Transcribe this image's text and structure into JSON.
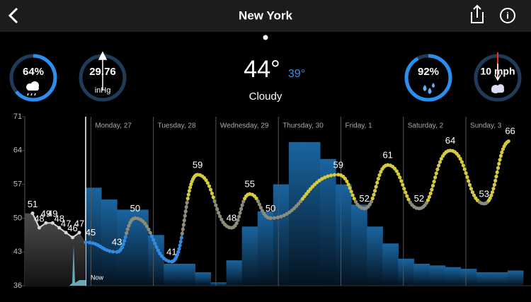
{
  "header": {
    "title": "New York"
  },
  "current": {
    "temperature": "44°",
    "feels_like": "39°",
    "condition": "Cloudy"
  },
  "gauges": {
    "precipitation": {
      "value": 64,
      "label": "64%"
    },
    "pressure": {
      "label": "29.76",
      "unit": "inHg"
    },
    "humidity": {
      "value": 92,
      "label": "92%"
    },
    "wind": {
      "label": "10 mph"
    }
  },
  "chart_data": {
    "type": "line",
    "ylim": [
      36,
      71
    ],
    "yticks": [
      71,
      64,
      57,
      50,
      43,
      36
    ],
    "xlim": [
      -2,
      169
    ],
    "now_label": "Now",
    "days": {
      "x": [
        0,
        24,
        48,
        72,
        96,
        120,
        144
      ],
      "labels": [
        "Monday, 27",
        "Tuesday, 28",
        "Wednesday, 29",
        "Thursday, 30",
        "Friday, 1",
        "Saturday, 2",
        "Sunday, 3"
      ]
    },
    "forecast": {
      "x": [
        -2,
        10,
        17,
        31,
        41,
        54,
        61,
        69,
        95,
        105,
        114,
        126,
        138,
        151,
        161
      ],
      "values": [
        45,
        43,
        50,
        41,
        59,
        48,
        55,
        50,
        59,
        52,
        61,
        52,
        64,
        53,
        66
      ]
    },
    "past": {
      "values": [
        51,
        48,
        49,
        49,
        48,
        47,
        46,
        47
      ]
    },
    "cloud": {
      "bins": [
        -2,
        4,
        10,
        16,
        22,
        28,
        34,
        40,
        46,
        52,
        58,
        64,
        70,
        76,
        82,
        88,
        94,
        100,
        106,
        112,
        118,
        124,
        130,
        136,
        142,
        148,
        154,
        160,
        166
      ],
      "values": [
        58,
        51,
        45,
        45,
        30,
        13,
        13,
        8,
        2,
        15,
        35,
        44,
        60,
        85,
        85,
        75,
        60,
        48,
        35,
        25,
        16,
        13,
        12,
        11,
        10,
        8,
        8,
        9
      ]
    },
    "colors": {
      "cold": "#2e8be6",
      "mild": "#8c8c7c",
      "warm": "#d6cb3a",
      "past": "#d8d8d8",
      "cloud": "#1b6aa8"
    }
  }
}
